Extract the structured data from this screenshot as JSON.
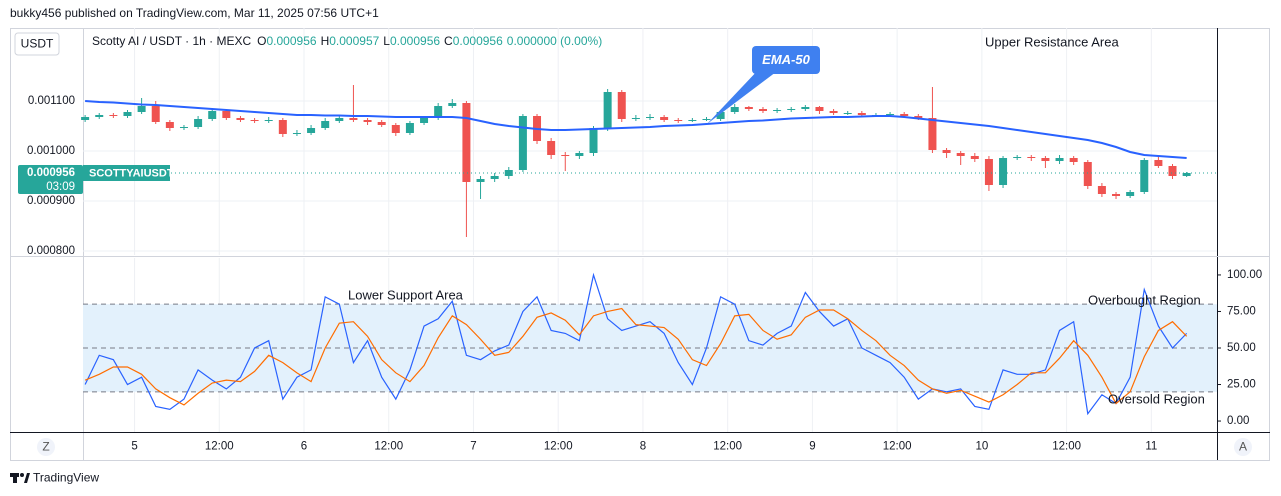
{
  "header": "bukky456 published on TradingView.com, Mar 11, 2025 07:56 UTC+1",
  "footer_logo": "TradingView",
  "axis_buttons": [
    "Z",
    "A"
  ],
  "chart_data": [
    {
      "type": "candlestick",
      "currency": "USDT",
      "symbol_line": "Scotty AI / USDT · 1h · MEXC",
      "ohlc": [
        {
          "key": "O",
          "value": 0.000956
        },
        {
          "key": "H",
          "value": 0.000957
        },
        {
          "key": "L",
          "value": 0.000956
        },
        {
          "key": "C",
          "value": 0.000956
        }
      ],
      "change": "0.000000 (0.00%)",
      "x": [
        0,
        2,
        4,
        6,
        8,
        10,
        12,
        14,
        16,
        18,
        20,
        22,
        24,
        26,
        28,
        30,
        32,
        34,
        36,
        38,
        40,
        42,
        44,
        46,
        48,
        50,
        52,
        54,
        56,
        58,
        60,
        62,
        64,
        66,
        68,
        70,
        72,
        74,
        76,
        78,
        80,
        82,
        84,
        86,
        88,
        90,
        92,
        94,
        96,
        98,
        100,
        102,
        104,
        106,
        108,
        110,
        112,
        114,
        116,
        118,
        120,
        122,
        124,
        126,
        128,
        130,
        132,
        134,
        136,
        138,
        140,
        142,
        144,
        146,
        148,
        150,
        152,
        154,
        156
      ],
      "xlim": [
        -0.3,
        160.3
      ],
      "xticks": [
        {
          "value": 7,
          "label": "5"
        },
        {
          "value": 19,
          "label": "12:00"
        },
        {
          "value": 31,
          "label": "6"
        },
        {
          "value": 43,
          "label": "12:00"
        },
        {
          "value": 55,
          "label": "7"
        },
        {
          "value": 67,
          "label": "12:00"
        },
        {
          "value": 79,
          "label": "8"
        },
        {
          "value": 91,
          "label": "12:00"
        },
        {
          "value": 103,
          "label": "9"
        },
        {
          "value": 115,
          "label": "12:00"
        },
        {
          "value": 127,
          "label": "10"
        },
        {
          "value": 139,
          "label": "12:00"
        },
        {
          "value": 151,
          "label": "11"
        }
      ],
      "open": [
        0.001062,
        0.001068,
        0.001072,
        0.00107,
        0.001078,
        0.00109,
        0.001058,
        0.001046,
        0.001048,
        0.001064,
        0.00108,
        0.001066,
        0.001062,
        0.00106,
        0.001062,
        0.001034,
        0.001036,
        0.001046,
        0.00106,
        0.001066,
        0.001062,
        0.001058,
        0.001052,
        0.001036,
        0.001056,
        0.001066,
        0.00109,
        0.001096,
        0.000938,
        0.000944,
        0.00095,
        0.000962,
        0.00107,
        0.00102,
        0.000992,
        0.00099,
        0.000996,
        0.001046,
        0.001118,
        0.001064,
        0.001066,
        0.001068,
        0.001062,
        0.00106,
        0.001062,
        0.001064,
        0.001078,
        0.001088,
        0.001084,
        0.00108,
        0.001082,
        0.001084,
        0.001088,
        0.00108,
        0.001076,
        0.001076,
        0.001072,
        0.001072,
        0.001074,
        0.00107,
        0.001066,
        0.001002,
        0.000996,
        0.00099,
        0.000984,
        0.000932,
        0.000986,
        0.000988,
        0.000986,
        0.00098,
        0.000986,
        0.000978,
        0.00093,
        0.000914,
        0.00091,
        0.000918,
        0.000982,
        0.00097,
        0.00095
      ],
      "high": [
        0.001072,
        0.001076,
        0.001076,
        0.001082,
        0.001106,
        0.0011,
        0.001062,
        0.001052,
        0.00107,
        0.001086,
        0.001084,
        0.00107,
        0.001066,
        0.001068,
        0.001066,
        0.001042,
        0.001052,
        0.001066,
        0.001072,
        0.001132,
        0.001066,
        0.001062,
        0.001056,
        0.00106,
        0.00107,
        0.001096,
        0.001104,
        0.0011,
        0.00095,
        0.000956,
        0.000968,
        0.001074,
        0.001074,
        0.001026,
        0.000998,
        0.001,
        0.00105,
        0.001124,
        0.001122,
        0.001072,
        0.001074,
        0.001072,
        0.001066,
        0.001066,
        0.001068,
        0.001082,
        0.001094,
        0.00109,
        0.001088,
        0.001086,
        0.001088,
        0.001092,
        0.00109,
        0.001084,
        0.00108,
        0.00108,
        0.001076,
        0.001078,
        0.001078,
        0.001074,
        0.001128,
        0.001006,
        0.001,
        0.000996,
        0.00099,
        0.00099,
        0.000992,
        0.000992,
        0.00099,
        0.000992,
        0.00099,
        0.000982,
        0.000936,
        0.000918,
        0.000922,
        0.000986,
        0.000988,
        0.000974,
        0.000958
      ],
      "low": [
        0.001058,
        0.001064,
        0.001066,
        0.001066,
        0.001074,
        0.001054,
        0.00104,
        0.001042,
        0.001044,
        0.00106,
        0.001062,
        0.001058,
        0.001056,
        0.001056,
        0.001028,
        0.00103,
        0.001032,
        0.001042,
        0.001056,
        0.001058,
        0.001052,
        0.001048,
        0.00103,
        0.001032,
        0.001052,
        0.001062,
        0.001086,
        0.000828,
        0.000904,
        0.000938,
        0.000944,
        0.000958,
        0.001014,
        0.000984,
        0.00096,
        0.000984,
        0.00099,
        0.00104,
        0.001058,
        0.00106,
        0.001062,
        0.001058,
        0.001056,
        0.001058,
        0.00106,
        0.00106,
        0.001074,
        0.00108,
        0.001076,
        0.001076,
        0.001078,
        0.00108,
        0.001074,
        0.001072,
        0.001072,
        0.001068,
        0.001068,
        0.001068,
        0.001066,
        0.001062,
        0.000996,
        0.000986,
        0.000972,
        0.000978,
        0.00092,
        0.000926,
        0.000982,
        0.00098,
        0.000966,
        0.000974,
        0.000972,
        0.000924,
        0.000908,
        0.000904,
        0.000906,
        0.000914,
        0.000966,
        0.000944,
        0.000948
      ],
      "close": [
        0.001068,
        0.001072,
        0.00107,
        0.001078,
        0.00109,
        0.001058,
        0.001046,
        0.001048,
        0.001064,
        0.00108,
        0.001066,
        0.001062,
        0.00106,
        0.001062,
        0.001034,
        0.001036,
        0.001046,
        0.00106,
        0.001066,
        0.001062,
        0.001058,
        0.001052,
        0.001036,
        0.001056,
        0.001066,
        0.00109,
        0.001096,
        0.000938,
        0.000944,
        0.00095,
        0.000962,
        0.00107,
        0.00102,
        0.000992,
        0.00099,
        0.000996,
        0.001046,
        0.001118,
        0.001064,
        0.001066,
        0.001068,
        0.001062,
        0.00106,
        0.001062,
        0.001064,
        0.001078,
        0.001088,
        0.001084,
        0.00108,
        0.001082,
        0.001084,
        0.001088,
        0.00108,
        0.001076,
        0.001076,
        0.001072,
        0.001072,
        0.001074,
        0.00107,
        0.001066,
        0.001002,
        0.000996,
        0.00099,
        0.000984,
        0.000932,
        0.000986,
        0.000988,
        0.000986,
        0.00098,
        0.000986,
        0.000978,
        0.00093,
        0.000914,
        0.00091,
        0.000918,
        0.000982,
        0.00097,
        0.00095,
        0.000956
      ],
      "up_color": "#26a69a",
      "down_color": "#ef5350",
      "ylim": [
        0.000792,
        0.001246
      ],
      "yticks": [
        {
          "value": 0.0011,
          "label": "0.001100"
        },
        {
          "value": 0.001,
          "label": "0.001000"
        },
        {
          "value": 0.0009,
          "label": "0.000900"
        },
        {
          "value": 0.0008,
          "label": "0.000800"
        }
      ],
      "grid": true,
      "ema": {
        "name": "EMA-50",
        "color": "#2962ff",
        "values": [
          0.0011,
          0.001098,
          0.001097,
          0.001095,
          0.001093,
          0.001092,
          0.00109,
          0.001088,
          0.001086,
          0.001084,
          0.001082,
          0.00108,
          0.001078,
          0.001076,
          0.001074,
          0.001072,
          0.001072,
          0.001071,
          0.001071,
          0.00107,
          0.00107,
          0.001069,
          0.001068,
          0.001068,
          0.001068,
          0.001068,
          0.001068,
          0.001066,
          0.00106,
          0.001054,
          0.00105,
          0.001047,
          0.001044,
          0.001042,
          0.001042,
          0.001043,
          0.001044,
          0.001045,
          0.001046,
          0.001047,
          0.001048,
          0.00105,
          0.001051,
          0.001052,
          0.001054,
          0.001056,
          0.001058,
          0.00106,
          0.001061,
          0.001063,
          0.001065,
          0.001066,
          0.001067,
          0.001068,
          0.001068,
          0.001069,
          0.00107,
          0.00107,
          0.001068,
          0.001065,
          0.001062,
          0.001059,
          0.001056,
          0.001053,
          0.00105,
          0.001046,
          0.001042,
          0.001038,
          0.001034,
          0.00103,
          0.001026,
          0.001022,
          0.001016,
          0.001008,
          0.000998,
          0.000992,
          0.00099,
          0.000988,
          0.000986
        ]
      },
      "last_price": 0.000956,
      "symbol": "SCOTTYAIUSDT",
      "countdown": "03:09",
      "annotations": [
        "Upper Resistance Area"
      ]
    },
    {
      "type": "line",
      "x": [
        0,
        2,
        4,
        6,
        8,
        10,
        12,
        14,
        16,
        18,
        20,
        22,
        24,
        26,
        28,
        30,
        32,
        34,
        36,
        38,
        40,
        42,
        44,
        46,
        48,
        50,
        52,
        54,
        56,
        58,
        60,
        62,
        64,
        66,
        68,
        70,
        72,
        74,
        76,
        78,
        80,
        82,
        84,
        86,
        88,
        90,
        92,
        94,
        96,
        98,
        100,
        102,
        104,
        106,
        108,
        110,
        112,
        114,
        116,
        118,
        120,
        122,
        124,
        126,
        128,
        130,
        132,
        134,
        136,
        138,
        140,
        142,
        144,
        146,
        148,
        150,
        152,
        154,
        156
      ],
      "xlim": [
        -0.3,
        160.3
      ],
      "ylim": [
        -7.5,
        111.6
      ],
      "yticks": [
        {
          "value": 100,
          "label": "100.00"
        },
        {
          "value": 75,
          "label": "75.00"
        },
        {
          "value": 50,
          "label": "50.00"
        },
        {
          "value": 25,
          "label": "25.00"
        },
        {
          "value": 0,
          "label": "0.00"
        }
      ],
      "levels": [
        80,
        50,
        20
      ],
      "band_color": "#e3f1fc",
      "series": [
        {
          "color": "#2962ff",
          "values": [
            25,
            45,
            42,
            25,
            30,
            10,
            8,
            15,
            35,
            28,
            22,
            30,
            50,
            55,
            15,
            30,
            35,
            85,
            80,
            40,
            55,
            30,
            15,
            35,
            65,
            70,
            82,
            45,
            42,
            48,
            52,
            75,
            85,
            62,
            60,
            55,
            100,
            70,
            62,
            65,
            68,
            60,
            40,
            25,
            50,
            85,
            80,
            55,
            52,
            60,
            65,
            88,
            75,
            65,
            70,
            50,
            45,
            40,
            30,
            15,
            22,
            20,
            22,
            10,
            8,
            35,
            32,
            32,
            35,
            62,
            68,
            5,
            18,
            12,
            30,
            90,
            65,
            50,
            60
          ]
        },
        {
          "color": "#ff6d00",
          "values": [
            28,
            32,
            37,
            37,
            32,
            22,
            16,
            11,
            19,
            26,
            28,
            27,
            34,
            45,
            40,
            33,
            27,
            50,
            67,
            68,
            58,
            42,
            33,
            27,
            38,
            57,
            72,
            66,
            56,
            45,
            47,
            58,
            71,
            74,
            69,
            59,
            72,
            75,
            77,
            66,
            65,
            64,
            56,
            42,
            38,
            53,
            72,
            73,
            62,
            56,
            59,
            71,
            76,
            76,
            70,
            62,
            55,
            45,
            38,
            28,
            22,
            19,
            21,
            17,
            13,
            18,
            25,
            33,
            33,
            43,
            55,
            45,
            30,
            12,
            20,
            44,
            62,
            68,
            58
          ]
        }
      ],
      "annotations": [
        "Lower Support Area",
        "Overbought Region",
        "Oversold Region"
      ]
    }
  ]
}
